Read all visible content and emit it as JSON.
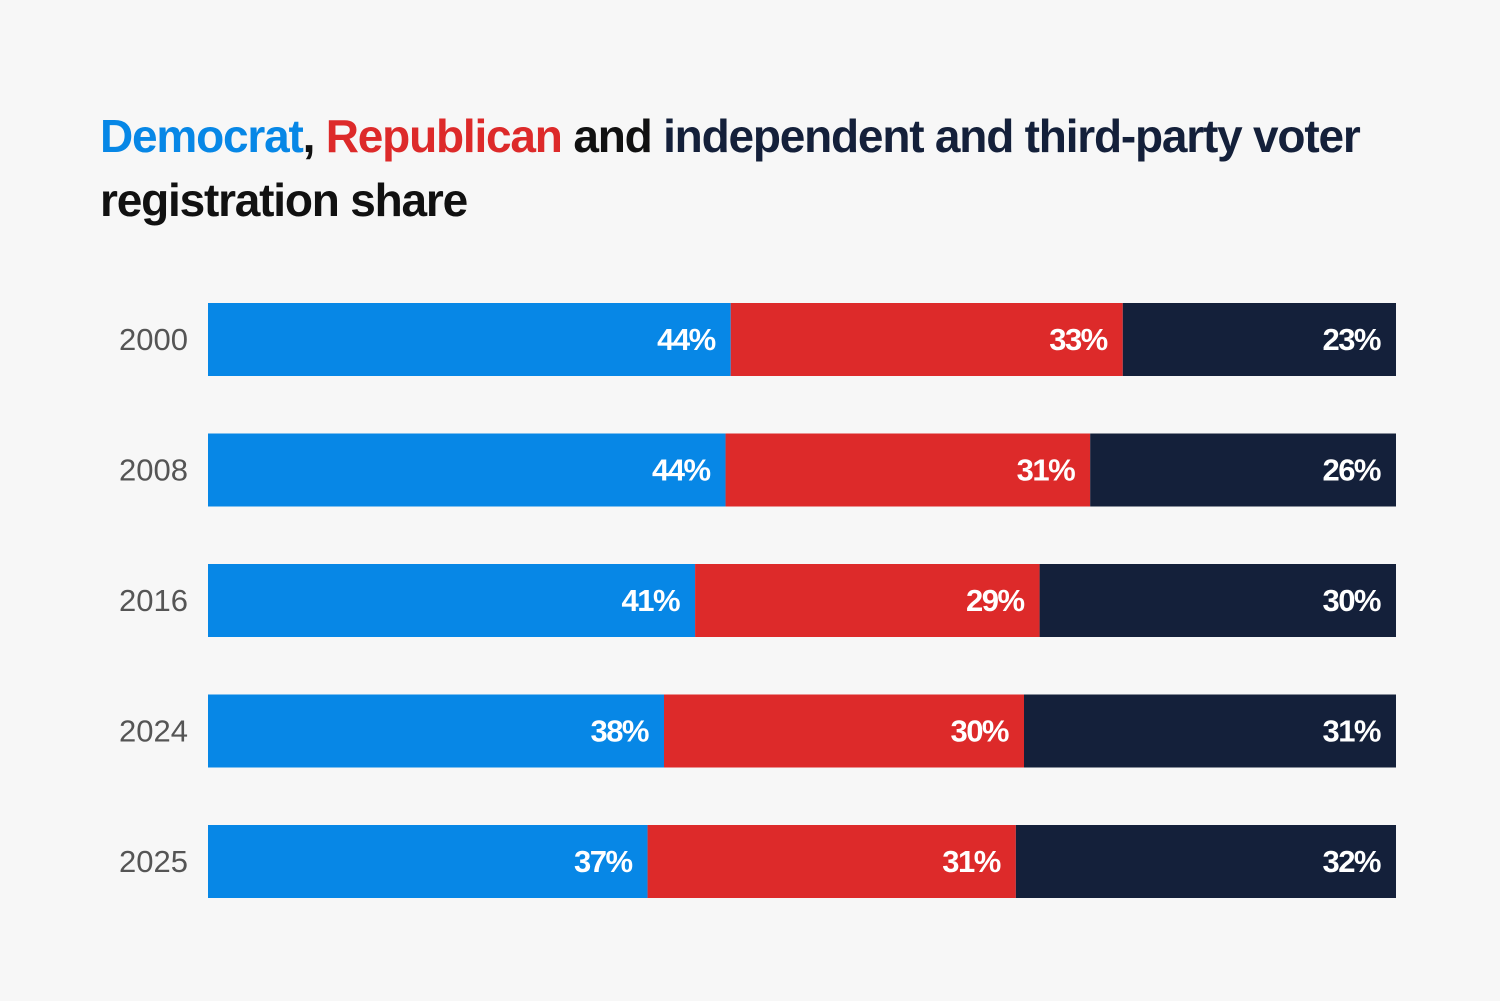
{
  "title": {
    "democrat": "Democrat",
    "sep1": ",",
    "republican": "Republican",
    "and1": "and",
    "independent": "independent and third-party voter",
    "rest": "registration share"
  },
  "colors": {
    "democrat": "#0787e6",
    "republican": "#dd2a2a",
    "independent": "#14203a",
    "background": "#f7f7f7"
  },
  "chart_data": {
    "type": "bar",
    "orientation": "horizontal",
    "stacked": true,
    "title": "Democrat, Republican and independent and third-party voter registration share",
    "categories": [
      "2000",
      "2008",
      "2016",
      "2024",
      "2025"
    ],
    "series": [
      {
        "name": "Democrat",
        "values": [
          44,
          44,
          41,
          38,
          37
        ],
        "labels": [
          "44%",
          "44%",
          "41%",
          "38%",
          "37%"
        ]
      },
      {
        "name": "Republican",
        "values": [
          33,
          31,
          29,
          30,
          31
        ],
        "labels": [
          "33%",
          "31%",
          "29%",
          "30%",
          "31%"
        ]
      },
      {
        "name": "independent and third-party",
        "values": [
          23,
          26,
          30,
          31,
          32
        ],
        "labels": [
          "23%",
          "26%",
          "30%",
          "31%",
          "32%"
        ]
      }
    ],
    "xlabel": "",
    "ylabel": "",
    "grid": false,
    "legend": "title"
  }
}
